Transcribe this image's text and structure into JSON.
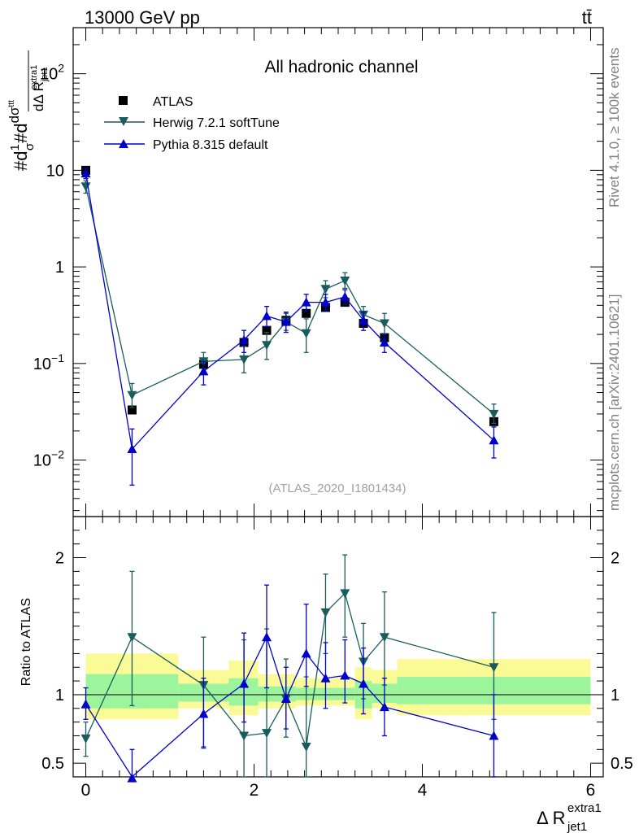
{
  "header": {
    "energy": "13000 GeV pp",
    "process": "tt̄"
  },
  "side_texts": {
    "rivet": "Rivet 4.1.0, ≥ 100k events",
    "mcplots": "mcplots.cern.ch [arXiv:2401.10621]"
  },
  "colors": {
    "atlas": "#000000",
    "herwig": "#1a5c5c",
    "pythia": "#0000cc",
    "band_green": "#9cf59c",
    "band_yellow": "#fafa96"
  },
  "chart_data": [
    {
      "type": "scatter",
      "scale": "log",
      "title": "All hadronic channel",
      "analysis": "(ATLAS_2020_I1801434)",
      "ylabel": {
        "main": "#d",
        "frac_num": "1",
        "frac_den": "σ",
        "mid": "#d",
        "dnum": "dσ",
        "dnum_sup": "ttt",
        "dden": "dΔ R",
        "dden_sub": "jet1",
        "dden_sup": "extra1"
      },
      "xlim": [
        -0.15,
        6.15
      ],
      "ylim": [
        0.0026,
        300
      ],
      "yticks": [
        {
          "value": 0.01,
          "base": "10",
          "exp": "−2"
        },
        {
          "value": 0.1,
          "base": "10",
          "exp": "−1"
        },
        {
          "value": 1,
          "base": "1",
          "exp": ""
        },
        {
          "value": 10,
          "base": "10",
          "exp": ""
        },
        {
          "value": 100,
          "base": "10",
          "exp": "2"
        }
      ],
      "legend": [
        "ATLAS",
        "Herwig 7.2.1 softTune",
        "Pythia 8.315 default"
      ],
      "series": [
        {
          "name": "ATLAS",
          "marker": "square",
          "x": [
            0.0,
            0.55,
            1.4,
            1.88,
            2.15,
            2.38,
            2.62,
            2.85,
            3.08,
            3.3,
            3.55,
            4.85
          ],
          "y": [
            10.0,
            0.033,
            0.098,
            0.165,
            0.22,
            0.28,
            0.33,
            0.38,
            0.43,
            0.26,
            0.185,
            0.025
          ]
        },
        {
          "name": "Herwig 7.2.1 softTune",
          "marker": "triangle-down",
          "x": [
            0.0,
            0.55,
            1.4,
            1.88,
            2.15,
            2.38,
            2.62,
            2.85,
            3.08,
            3.3,
            3.55,
            4.85
          ],
          "y": [
            6.8,
            0.047,
            0.105,
            0.11,
            0.155,
            0.27,
            0.205,
            0.59,
            0.72,
            0.32,
            0.26,
            0.03
          ],
          "err": [
            [
              5.8,
              7.8
            ],
            [
              0.035,
              0.062
            ],
            [
              0.08,
              0.13
            ],
            [
              0.08,
              0.15
            ],
            [
              0.11,
              0.21
            ],
            [
              0.22,
              0.33
            ],
            [
              0.13,
              0.29
            ],
            [
              0.48,
              0.72
            ],
            [
              0.6,
              0.87
            ],
            [
              0.26,
              0.39
            ],
            [
              0.2,
              0.33
            ],
            [
              0.024,
              0.038
            ]
          ]
        },
        {
          "name": "Pythia 8.315 default",
          "marker": "triangle-up",
          "x": [
            0.0,
            0.55,
            1.4,
            1.88,
            2.15,
            2.38,
            2.62,
            2.85,
            3.08,
            3.3,
            3.55,
            4.85
          ],
          "y": [
            9.3,
            0.013,
            0.083,
            0.175,
            0.31,
            0.27,
            0.43,
            0.43,
            0.49,
            0.28,
            0.165,
            0.016
          ],
          "err": [
            [
              8.2,
              10.5
            ],
            [
              0.0055,
              0.021
            ],
            [
              0.06,
              0.105
            ],
            [
              0.13,
              0.22
            ],
            [
              0.24,
              0.39
            ],
            [
              0.21,
              0.34
            ],
            [
              0.35,
              0.52
            ],
            [
              0.35,
              0.52
            ],
            [
              0.41,
              0.58
            ],
            [
              0.22,
              0.34
            ],
            [
              0.13,
              0.2
            ],
            [
              0.0105,
              0.022
            ]
          ]
        }
      ]
    },
    {
      "type": "scatter",
      "ylabel": "Ratio to ATLAS",
      "xlabel": "Δ R",
      "xlabel_sub": "jet1",
      "xlabel_sup": "extra1",
      "xlim": [
        -0.15,
        6.15
      ],
      "ylim": [
        0.4,
        2.3
      ],
      "xticks": [
        {
          "value": 0,
          "label": "0"
        },
        {
          "value": 2,
          "label": "2"
        },
        {
          "value": 4,
          "label": "4"
        },
        {
          "value": 6,
          "label": "6"
        }
      ],
      "yticks": [
        {
          "value": 0.5,
          "label": "0.5"
        },
        {
          "value": 1,
          "label": "1"
        },
        {
          "value": 2,
          "label": "2"
        }
      ],
      "bands": [
        {
          "x0": 0.0,
          "x1": 1.1,
          "yellow": [
            0.82,
            1.3
          ],
          "green": [
            0.9,
            1.15
          ]
        },
        {
          "x0": 1.1,
          "x1": 1.7,
          "yellow": [
            0.9,
            1.18
          ],
          "green": [
            0.95,
            1.08
          ]
        },
        {
          "x0": 1.7,
          "x1": 2.05,
          "yellow": [
            0.85,
            1.25
          ],
          "green": [
            0.92,
            1.12
          ]
        },
        {
          "x0": 2.05,
          "x1": 2.5,
          "yellow": [
            0.9,
            1.15
          ],
          "green": [
            0.95,
            1.06
          ]
        },
        {
          "x0": 2.5,
          "x1": 3.2,
          "yellow": [
            0.92,
            1.12
          ],
          "green": [
            0.96,
            1.05
          ]
        },
        {
          "x0": 3.2,
          "x1": 3.4,
          "yellow": [
            0.82,
            1.2
          ],
          "green": [
            0.9,
            1.1
          ]
        },
        {
          "x0": 3.4,
          "x1": 3.7,
          "yellow": [
            0.9,
            1.18
          ],
          "green": [
            0.94,
            1.08
          ]
        },
        {
          "x0": 3.7,
          "x1": 6.0,
          "yellow": [
            0.85,
            1.26
          ],
          "green": [
            0.93,
            1.13
          ]
        }
      ],
      "series": [
        {
          "name": "Herwig 7.2.1 softTune",
          "marker": "triangle-down",
          "x": [
            0.0,
            0.55,
            1.4,
            1.88,
            2.15,
            2.38,
            2.62,
            2.85,
            3.08,
            3.3,
            3.55,
            4.85
          ],
          "y": [
            0.68,
            1.42,
            1.07,
            0.7,
            0.72,
            0.97,
            0.62,
            1.6,
            1.74,
            1.24,
            1.42,
            1.2
          ],
          "err": [
            [
              0.55,
              0.8
            ],
            [
              0.92,
              1.9
            ],
            [
              0.62,
              1.42
            ],
            [
              0.28,
              1.4
            ],
            [
              0.3,
              1.48
            ],
            [
              0.69,
              1.26
            ],
            [
              0.3,
              1.13
            ],
            [
              1.3,
              1.88
            ],
            [
              1.42,
              2.02
            ],
            [
              0.97,
              1.52
            ],
            [
              1.07,
              1.75
            ],
            [
              0.82,
              1.6
            ]
          ]
        },
        {
          "name": "Pythia 8.315 default",
          "marker": "triangle-up",
          "x": [
            0.0,
            0.55,
            1.4,
            1.88,
            2.15,
            2.38,
            2.62,
            2.85,
            3.08,
            3.3,
            3.55,
            4.85
          ],
          "y": [
            0.93,
            0.39,
            0.86,
            1.08,
            1.42,
            0.97,
            1.3,
            1.12,
            1.14,
            1.08,
            0.91,
            0.7
          ],
          "err": [
            [
              0.82,
              1.05
            ],
            [
              0.16,
              0.6
            ],
            [
              0.61,
              1.12
            ],
            [
              0.8,
              1.45
            ],
            [
              1.05,
              1.8
            ],
            [
              0.75,
              1.2
            ],
            [
              1.06,
              1.66
            ],
            [
              0.9,
              1.38
            ],
            [
              0.94,
              1.4
            ],
            [
              0.86,
              1.34
            ],
            [
              0.7,
              1.12
            ],
            [
              0.39,
              1.0
            ]
          ]
        }
      ]
    }
  ]
}
